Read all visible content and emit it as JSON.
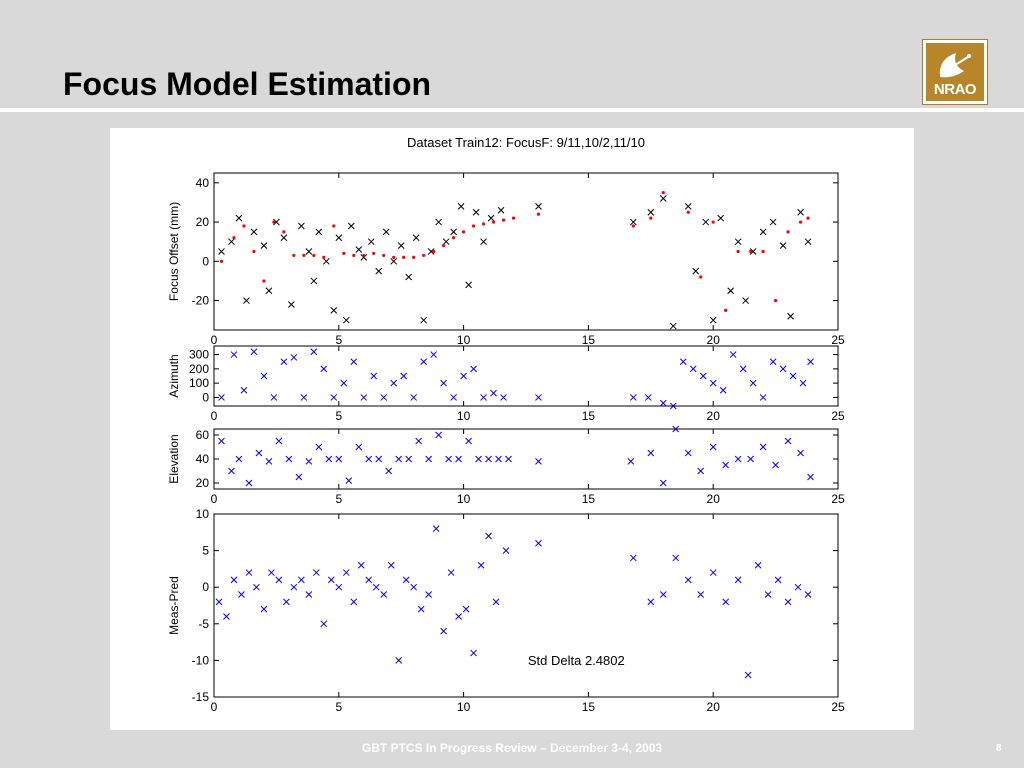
{
  "slide": {
    "title": "Focus Model Estimation",
    "footer": "GBT PTCS In Progress  Review – December 3-4, 2003",
    "page_number": "8",
    "logo_text": "NRAO"
  },
  "colors": {
    "background": "#d9d9d9",
    "measured": "#000000",
    "model": "#ff0000",
    "blue_series": "#0000ff",
    "logo": "#b8862a"
  },
  "chart_data": [
    {
      "type": "scatter",
      "title": "Dataset Train12: FocusF: 9/11,10/2,11/10",
      "xlabel": "",
      "ylabel": "Focus Offset (mm)",
      "xlim": [
        0,
        25
      ],
      "ylim": [
        -35,
        45
      ],
      "x_ticks": [
        0,
        5,
        10,
        15,
        20,
        25
      ],
      "y_ticks": [
        -20,
        0,
        20,
        40
      ],
      "grid": false,
      "series": [
        {
          "marker": "x",
          "color": "#000000",
          "x": [
            0.3,
            0.7,
            1.0,
            1.3,
            1.6,
            2.0,
            2.2,
            2.5,
            2.8,
            3.1,
            3.5,
            3.8,
            4.0,
            4.2,
            4.5,
            4.8,
            5.0,
            5.3,
            5.5,
            5.8,
            6.0,
            6.3,
            6.6,
            6.9,
            7.2,
            7.5,
            7.8,
            8.1,
            8.4,
            8.7,
            9.0,
            9.3,
            9.6,
            9.9,
            10.2,
            10.5,
            10.8,
            11.1,
            11.5,
            13.0,
            16.8,
            17.5,
            18.0,
            18.4,
            19.0,
            19.3,
            19.7,
            20.0,
            20.3,
            20.7,
            21.0,
            21.3,
            21.6,
            22.0,
            22.4,
            22.8,
            23.1,
            23.5,
            23.8
          ],
          "y": [
            5,
            10,
            22,
            -20,
            15,
            8,
            -15,
            20,
            12,
            -22,
            18,
            5,
            -10,
            15,
            0,
            -25,
            12,
            -30,
            18,
            6,
            2,
            10,
            -5,
            15,
            0,
            8,
            -8,
            12,
            -30,
            5,
            20,
            10,
            15,
            28,
            -12,
            25,
            10,
            22,
            26,
            28,
            20,
            25,
            32,
            -33,
            28,
            -5,
            20,
            -30,
            22,
            -15,
            10,
            -20,
            5,
            15,
            20,
            8,
            -28,
            25,
            10
          ]
        },
        {
          "marker": ".",
          "color": "#ff0000",
          "x": [
            0.3,
            0.8,
            1.2,
            1.6,
            2.0,
            2.4,
            2.8,
            3.2,
            3.6,
            4.0,
            4.4,
            4.8,
            5.2,
            5.6,
            6.0,
            6.4,
            6.8,
            7.2,
            7.6,
            8.0,
            8.4,
            8.8,
            9.2,
            9.6,
            10.0,
            10.4,
            10.8,
            11.2,
            11.6,
            12.0,
            13.0,
            16.8,
            17.5,
            18.0,
            19.0,
            19.5,
            20.0,
            20.5,
            21.0,
            21.5,
            22.0,
            22.5,
            23.0,
            23.5,
            23.8
          ],
          "y": [
            0,
            12,
            18,
            5,
            -10,
            20,
            15,
            3,
            3,
            3,
            2,
            18,
            4,
            3,
            3,
            4,
            3,
            2,
            2,
            2,
            3,
            5,
            8,
            12,
            15,
            18,
            19,
            20,
            21,
            22,
            24,
            18,
            22,
            35,
            25,
            -8,
            20,
            -25,
            5,
            5,
            5,
            -20,
            15,
            20,
            22
          ]
        }
      ]
    },
    {
      "type": "scatter",
      "ylabel": "Azimuth",
      "xlim": [
        0,
        25
      ],
      "ylim": [
        -60,
        360
      ],
      "x_ticks": [
        0,
        5,
        10,
        15,
        20,
        25
      ],
      "y_ticks": [
        0,
        100,
        200,
        300
      ],
      "series": [
        {
          "marker": "x",
          "color": "#0000ff",
          "x": [
            0.3,
            0.8,
            1.2,
            1.6,
            2.0,
            2.4,
            2.8,
            3.2,
            3.6,
            4.0,
            4.4,
            4.8,
            5.2,
            5.6,
            6.0,
            6.4,
            6.8,
            7.2,
            7.6,
            8.0,
            8.4,
            8.8,
            9.2,
            9.6,
            10.0,
            10.4,
            10.8,
            11.2,
            11.6,
            13.0,
            16.8,
            17.4,
            18.0,
            18.4,
            18.8,
            19.2,
            19.6,
            20.0,
            20.4,
            20.8,
            21.2,
            21.6,
            22.0,
            22.4,
            22.8,
            23.2,
            23.6,
            23.9
          ],
          "y": [
            0,
            300,
            50,
            320,
            150,
            0,
            250,
            280,
            0,
            320,
            200,
            0,
            100,
            250,
            0,
            150,
            0,
            100,
            150,
            0,
            250,
            300,
            100,
            0,
            150,
            200,
            0,
            30,
            0,
            0,
            0,
            0,
            -40,
            -60,
            250,
            200,
            150,
            100,
            50,
            300,
            200,
            100,
            0,
            250,
            200,
            150,
            100,
            250
          ]
        }
      ]
    },
    {
      "type": "scatter",
      "ylabel": "Elevation",
      "xlim": [
        0,
        25
      ],
      "ylim": [
        15,
        65
      ],
      "x_ticks": [
        0,
        5,
        10,
        15,
        20,
        25
      ],
      "y_ticks": [
        20,
        40,
        60
      ],
      "series": [
        {
          "marker": "x",
          "color": "#0000ff",
          "x": [
            0.3,
            0.7,
            1.0,
            1.4,
            1.8,
            2.2,
            2.6,
            3.0,
            3.4,
            3.8,
            4.2,
            4.6,
            5.0,
            5.4,
            5.8,
            6.2,
            6.6,
            7.0,
            7.4,
            7.8,
            8.2,
            8.6,
            9.0,
            9.4,
            9.8,
            10.2,
            10.6,
            11.0,
            11.4,
            11.8,
            13.0,
            16.7,
            17.5,
            18.0,
            18.5,
            19.0,
            19.5,
            20.0,
            20.5,
            21.0,
            21.5,
            22.0,
            22.5,
            23.0,
            23.5,
            23.9
          ],
          "y": [
            55,
            30,
            40,
            20,
            45,
            38,
            55,
            40,
            25,
            38,
            50,
            40,
            40,
            22,
            50,
            40,
            40,
            30,
            40,
            40,
            55,
            40,
            60,
            40,
            40,
            55,
            40,
            40,
            40,
            40,
            38,
            38,
            45,
            20,
            65,
            45,
            30,
            50,
            35,
            40,
            40,
            50,
            35,
            55,
            45,
            25
          ]
        }
      ]
    },
    {
      "type": "scatter",
      "ylabel": "Meas-Pred",
      "xlim": [
        0,
        25
      ],
      "ylim": [
        -15,
        10
      ],
      "x_ticks": [
        0,
        5,
        10,
        15,
        20,
        25
      ],
      "y_ticks": [
        -15,
        -10,
        -5,
        0,
        5,
        10
      ],
      "annotation": "Std Delta 2.4802",
      "series": [
        {
          "marker": "x",
          "color": "#0000ff",
          "x": [
            0.2,
            0.5,
            0.8,
            1.1,
            1.4,
            1.7,
            2.0,
            2.3,
            2.6,
            2.9,
            3.2,
            3.5,
            3.8,
            4.1,
            4.4,
            4.7,
            5.0,
            5.3,
            5.6,
            5.9,
            6.2,
            6.5,
            6.8,
            7.1,
            7.4,
            7.7,
            8.0,
            8.3,
            8.6,
            8.9,
            9.2,
            9.5,
            9.8,
            10.1,
            10.4,
            10.7,
            11.0,
            11.3,
            11.7,
            13.0,
            16.8,
            17.5,
            18.0,
            18.5,
            19.0,
            19.5,
            20.0,
            20.5,
            21.0,
            21.4,
            21.8,
            22.2,
            22.6,
            23.0,
            23.4,
            23.8
          ],
          "y": [
            -2,
            -4,
            1,
            -1,
            2,
            0,
            -3,
            2,
            1,
            -2,
            0,
            1,
            -1,
            2,
            -5,
            1,
            0,
            2,
            -2,
            3,
            1,
            0,
            -1,
            3,
            -10,
            1,
            0,
            -3,
            -1,
            8,
            -6,
            2,
            -4,
            -3,
            -9,
            3,
            7,
            -2,
            5,
            6,
            4,
            -2,
            -1,
            4,
            1,
            -1,
            2,
            -2,
            1,
            -12,
            3,
            -1,
            1,
            -2,
            0,
            -1
          ]
        }
      ]
    }
  ]
}
